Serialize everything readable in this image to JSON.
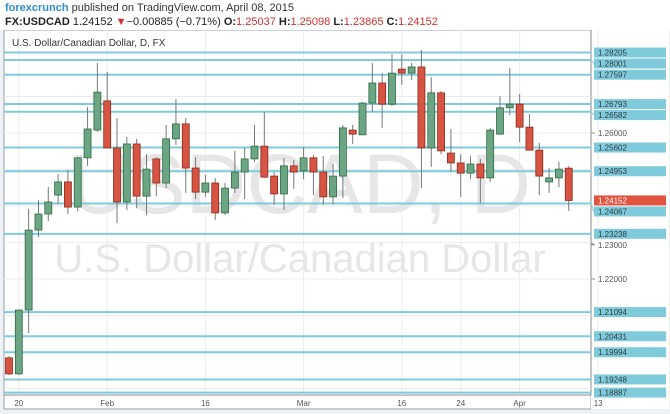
{
  "header": {
    "publisher": "forexcrunch",
    "published_text": "published on TradingView.com, April 08, 2015",
    "symbol": "FX:USDCAD",
    "last": "1.24152",
    "change": "−0.00885 (−0.71%)",
    "change_direction_icon": "triangle-down",
    "o_label": "O:",
    "o": "1.25037",
    "h_label": "H:",
    "h": "1.25098",
    "l_label": "L:",
    "l": "1.23865",
    "c_label": "C:",
    "c": "1.24152"
  },
  "colors": {
    "up": "#6ba583",
    "down": "#d75442",
    "level_line": "#7fcbdc",
    "last_price": "#e0533f"
  },
  "chart_data": {
    "type": "candlestick",
    "title": "U.S. Dollar/Canadian Dollar, D, FX",
    "watermark": [
      "USDCAD, D",
      "U.S. Dollar/Canadian Dollar"
    ],
    "ylim": [
      1.1855,
      1.288
    ],
    "grid": true,
    "x_tick_labels": [
      {
        "label": "20",
        "date": "2015-01-20"
      },
      {
        "label": "Feb",
        "date": "2015-02-02"
      },
      {
        "label": "16",
        "date": "2015-02-16"
      },
      {
        "label": "Mar",
        "date": "2015-03-02"
      },
      {
        "label": "16",
        "date": "2015-03-16"
      },
      {
        "label": "24",
        "date": "2015-03-24"
      },
      {
        "label": "Apr",
        "date": "2015-04-01"
      },
      {
        "label": "13",
        "date": "2015-04-13"
      }
    ],
    "y_tick_labels": [
      "1.26000",
      "1.23000",
      "1.22000"
    ],
    "levels": [
      "1.28205",
      "1.28001",
      "1.27597",
      "1.26793",
      "1.26582",
      "1.25602",
      "1.24953",
      "1.24067",
      "1.23238",
      "1.21094",
      "1.20431",
      "1.19994",
      "1.19248",
      "1.18887"
    ],
    "last_price": "1.24152",
    "candles": [
      {
        "d": "2015-01-19",
        "o": 1.1984,
        "h": 1.1989,
        "l": 1.1937,
        "c": 1.194
      },
      {
        "d": "2015-01-20",
        "o": 1.194,
        "h": 1.2115,
        "l": 1.1937,
        "c": 1.2115
      },
      {
        "d": "2015-01-21",
        "o": 1.2115,
        "h": 1.2392,
        "l": 1.2052,
        "c": 1.2334
      },
      {
        "d": "2015-01-22",
        "o": 1.2334,
        "h": 1.2416,
        "l": 1.2315,
        "c": 1.2378
      },
      {
        "d": "2015-01-23",
        "o": 1.2378,
        "h": 1.2452,
        "l": 1.2359,
        "c": 1.2411
      },
      {
        "d": "2015-01-26",
        "o": 1.243,
        "h": 1.2488,
        "l": 1.2405,
        "c": 1.2466
      },
      {
        "d": "2015-01-27",
        "o": 1.2466,
        "h": 1.2499,
        "l": 1.2378,
        "c": 1.2397
      },
      {
        "d": "2015-01-28",
        "o": 1.2397,
        "h": 1.2534,
        "l": 1.2386,
        "c": 1.2532
      },
      {
        "d": "2015-01-29",
        "o": 1.2532,
        "h": 1.2671,
        "l": 1.251,
        "c": 1.2611
      },
      {
        "d": "2015-01-30",
        "o": 1.2608,
        "h": 1.2792,
        "l": 1.2603,
        "c": 1.2712
      },
      {
        "d": "2015-02-02",
        "o": 1.2688,
        "h": 1.2767,
        "l": 1.2559,
        "c": 1.2559
      },
      {
        "d": "2015-02-03",
        "o": 1.2559,
        "h": 1.2641,
        "l": 1.2353,
        "c": 1.2411
      },
      {
        "d": "2015-02-04",
        "o": 1.2411,
        "h": 1.2589,
        "l": 1.2389,
        "c": 1.257
      },
      {
        "d": "2015-02-05",
        "o": 1.257,
        "h": 1.2584,
        "l": 1.2394,
        "c": 1.2427
      },
      {
        "d": "2015-02-06",
        "o": 1.2427,
        "h": 1.2542,
        "l": 1.2375,
        "c": 1.2501
      },
      {
        "d": "2015-02-09",
        "o": 1.2529,
        "h": 1.2534,
        "l": 1.2427,
        "c": 1.2463
      },
      {
        "d": "2015-02-10",
        "o": 1.2463,
        "h": 1.2622,
        "l": 1.2449,
        "c": 1.2584
      },
      {
        "d": "2015-02-11",
        "o": 1.2584,
        "h": 1.2693,
        "l": 1.2567,
        "c": 1.2625
      },
      {
        "d": "2015-02-12",
        "o": 1.2625,
        "h": 1.2641,
        "l": 1.2436,
        "c": 1.2504
      },
      {
        "d": "2015-02-13",
        "o": 1.2504,
        "h": 1.2534,
        "l": 1.2419,
        "c": 1.2438
      },
      {
        "d": "2015-02-16",
        "o": 1.2438,
        "h": 1.2485,
        "l": 1.2425,
        "c": 1.2463
      },
      {
        "d": "2015-02-17",
        "o": 1.2463,
        "h": 1.2477,
        "l": 1.2362,
        "c": 1.2381
      },
      {
        "d": "2015-02-18",
        "o": 1.2381,
        "h": 1.2463,
        "l": 1.2375,
        "c": 1.2449
      },
      {
        "d": "2015-02-19",
        "o": 1.2449,
        "h": 1.2551,
        "l": 1.2436,
        "c": 1.2493
      },
      {
        "d": "2015-02-20",
        "o": 1.2493,
        "h": 1.2559,
        "l": 1.2419,
        "c": 1.2529
      },
      {
        "d": "2015-02-23",
        "o": 1.2529,
        "h": 1.2622,
        "l": 1.2521,
        "c": 1.2564
      },
      {
        "d": "2015-02-24",
        "o": 1.2564,
        "h": 1.2658,
        "l": 1.2477,
        "c": 1.2479
      },
      {
        "d": "2015-02-25",
        "o": 1.2482,
        "h": 1.2493,
        "l": 1.2403,
        "c": 1.2433
      },
      {
        "d": "2015-02-26",
        "o": 1.2433,
        "h": 1.2532,
        "l": 1.2389,
        "c": 1.251
      },
      {
        "d": "2015-02-27",
        "o": 1.251,
        "h": 1.2526,
        "l": 1.2447,
        "c": 1.2493
      },
      {
        "d": "2015-03-02",
        "o": 1.2496,
        "h": 1.2562,
        "l": 1.2474,
        "c": 1.2532
      },
      {
        "d": "2015-03-03",
        "o": 1.2532,
        "h": 1.254,
        "l": 1.243,
        "c": 1.2493
      },
      {
        "d": "2015-03-04",
        "o": 1.2493,
        "h": 1.2537,
        "l": 1.2403,
        "c": 1.2425
      },
      {
        "d": "2015-03-05",
        "o": 1.2425,
        "h": 1.2515,
        "l": 1.2405,
        "c": 1.2482
      },
      {
        "d": "2015-03-06",
        "o": 1.2482,
        "h": 1.2622,
        "l": 1.2422,
        "c": 1.2614
      },
      {
        "d": "2015-03-09",
        "o": 1.2608,
        "h": 1.2622,
        "l": 1.257,
        "c": 1.2597
      },
      {
        "d": "2015-03-10",
        "o": 1.2595,
        "h": 1.2685,
        "l": 1.2595,
        "c": 1.2682
      },
      {
        "d": "2015-03-11",
        "o": 1.2682,
        "h": 1.2792,
        "l": 1.2658,
        "c": 1.2737
      },
      {
        "d": "2015-03-12",
        "o": 1.2737,
        "h": 1.2764,
        "l": 1.2614,
        "c": 1.2679
      },
      {
        "d": "2015-03-13",
        "o": 1.2679,
        "h": 1.2816,
        "l": 1.2674,
        "c": 1.2764
      },
      {
        "d": "2015-03-16",
        "o": 1.2775,
        "h": 1.2816,
        "l": 1.2732,
        "c": 1.2764
      },
      {
        "d": "2015-03-17",
        "o": 1.2764,
        "h": 1.2792,
        "l": 1.2745,
        "c": 1.2781
      },
      {
        "d": "2015-03-18",
        "o": 1.2781,
        "h": 1.2827,
        "l": 1.2449,
        "c": 1.2559
      },
      {
        "d": "2015-03-19",
        "o": 1.2559,
        "h": 1.2753,
        "l": 1.2507,
        "c": 1.271
      },
      {
        "d": "2015-03-20",
        "o": 1.271,
        "h": 1.2715,
        "l": 1.2542,
        "c": 1.2551
      },
      {
        "d": "2015-03-23",
        "o": 1.2545,
        "h": 1.2611,
        "l": 1.2493,
        "c": 1.2518
      },
      {
        "d": "2015-03-24",
        "o": 1.2518,
        "h": 1.2542,
        "l": 1.2425,
        "c": 1.249
      },
      {
        "d": "2015-03-25",
        "o": 1.249,
        "h": 1.2537,
        "l": 1.2474,
        "c": 1.2515
      },
      {
        "d": "2015-03-26",
        "o": 1.2515,
        "h": 1.2529,
        "l": 1.2408,
        "c": 1.2477
      },
      {
        "d": "2015-03-27",
        "o": 1.2477,
        "h": 1.2614,
        "l": 1.2466,
        "c": 1.2608
      },
      {
        "d": "2015-03-30",
        "o": 1.2597,
        "h": 1.2701,
        "l": 1.2595,
        "c": 1.2669
      },
      {
        "d": "2015-03-31",
        "o": 1.2669,
        "h": 1.2778,
        "l": 1.2649,
        "c": 1.2679
      },
      {
        "d": "2015-04-01",
        "o": 1.2679,
        "h": 1.2707,
        "l": 1.2575,
        "c": 1.2616
      },
      {
        "d": "2015-04-02",
        "o": 1.2616,
        "h": 1.2652,
        "l": 1.2553,
        "c": 1.2553
      },
      {
        "d": "2015-04-03",
        "o": 1.2553,
        "h": 1.2573,
        "l": 1.243,
        "c": 1.2482
      },
      {
        "d": "2015-04-06",
        "o": 1.2466,
        "h": 1.2504,
        "l": 1.2436,
        "c": 1.2477
      },
      {
        "d": "2015-04-07",
        "o": 1.2477,
        "h": 1.2521,
        "l": 1.2452,
        "c": 1.2501
      },
      {
        "d": "2015-04-08",
        "o": 1.25037,
        "h": 1.25098,
        "l": 1.23865,
        "c": 1.24152
      }
    ]
  }
}
